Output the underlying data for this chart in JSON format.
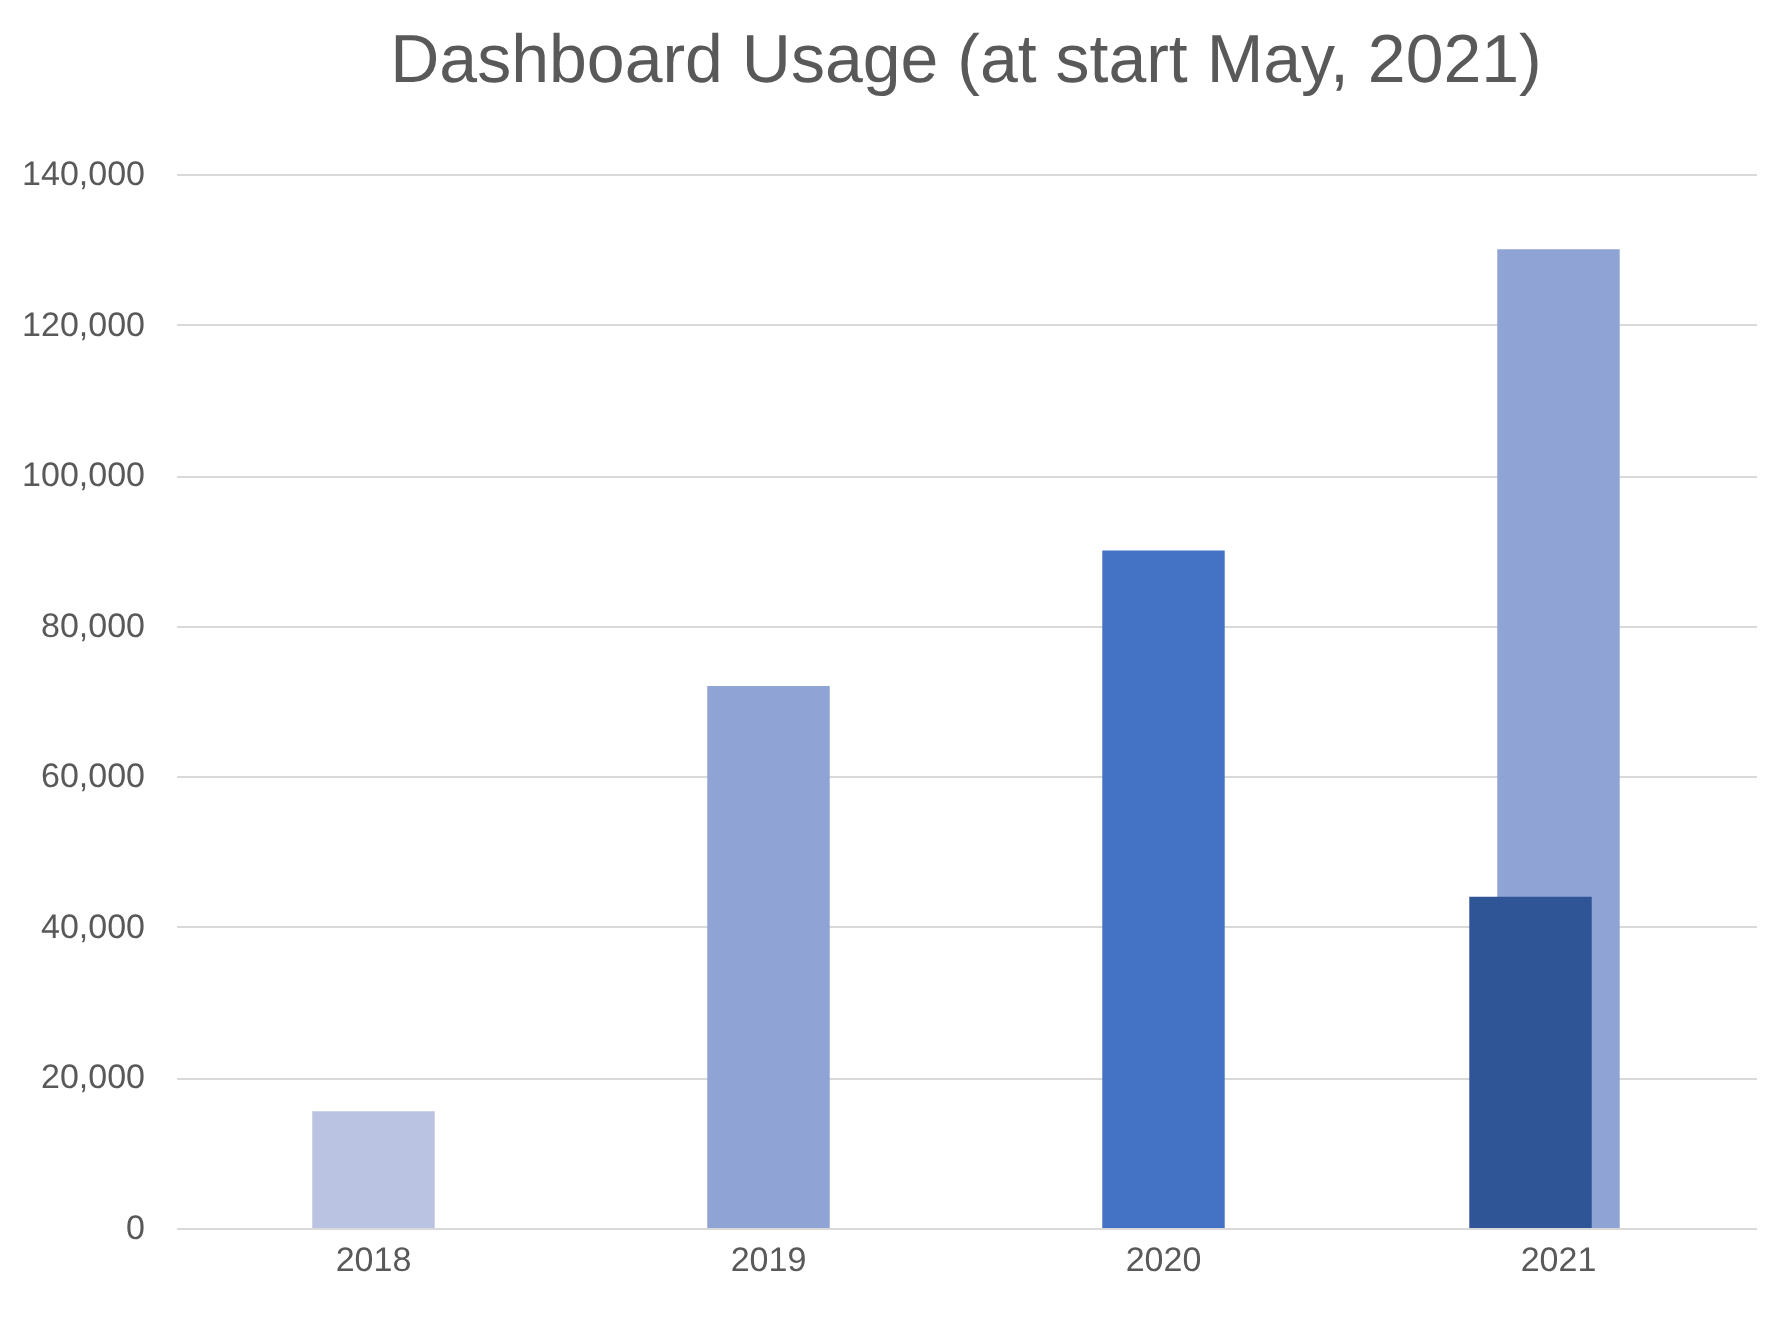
{
  "chart_data": {
    "type": "bar",
    "title": "Dashboard Usage (at start May, 2021)",
    "categories": [
      "2018",
      "2019",
      "2020",
      "2021"
    ],
    "series": [
      {
        "colors": [
          "#bac4e2",
          "#8fa3d4",
          "#4472c4",
          "#8fa3d4"
        ],
        "values": [
          15500,
          72000,
          90000,
          130000
        ]
      },
      {
        "color": "#2f5597",
        "values": [
          null,
          null,
          null,
          44000
        ]
      }
    ],
    "ylim": [
      0,
      140000
    ],
    "yticks": [
      0,
      {
        "value": 20000,
        "label": "20,000"
      },
      {
        "value": 40000,
        "label": "40,000"
      },
      {
        "value": 60000,
        "label": "60,000"
      },
      {
        "value": 80000,
        "label": "80,000"
      },
      {
        "value": 100000,
        "label": "100,000"
      },
      {
        "value": 120000,
        "label": "120,000"
      },
      {
        "value": 140000,
        "label": "140,000"
      }
    ],
    "grid": "y"
  }
}
